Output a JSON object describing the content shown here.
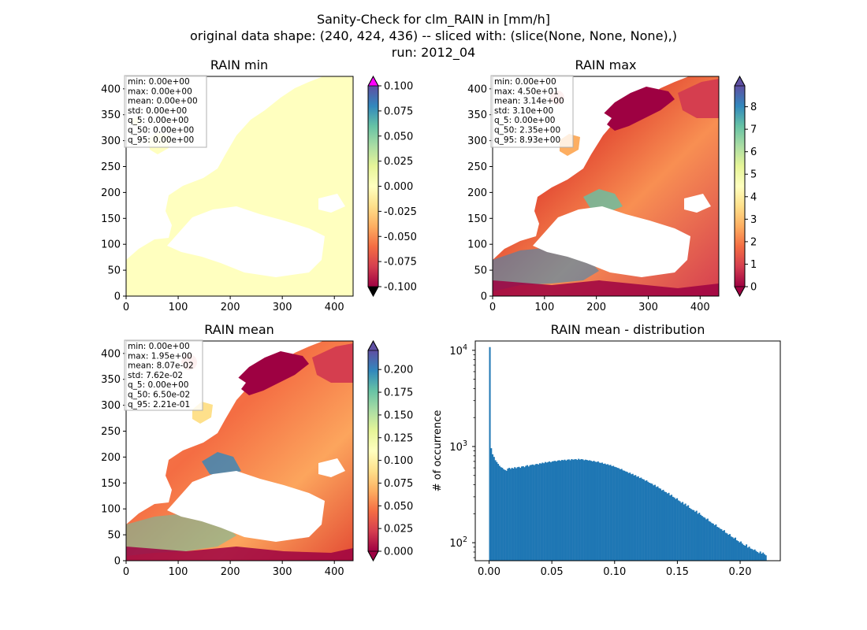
{
  "figure": {
    "suptitle_lines": [
      "Sanity-Check for clm_RAIN in [mm/h]",
      "original data shape: (240, 424, 436) -- sliced with: (slice(None, None, None),)",
      "run: 2012_04"
    ]
  },
  "chart_data": [
    {
      "type": "heatmap",
      "title": "RAIN min",
      "xticks": [
        0,
        100,
        200,
        300,
        400
      ],
      "yticks": [
        0,
        50,
        100,
        150,
        200,
        250,
        300,
        350,
        400
      ],
      "xlim": [
        0,
        436
      ],
      "ylim": [
        0,
        424
      ],
      "colormap": "Spectral",
      "colorbar": {
        "ticks": [
          "-0.100",
          "-0.075",
          "-0.050",
          "-0.025",
          "0.000",
          "0.025",
          "0.050",
          "0.075",
          "0.100"
        ],
        "range": [
          -0.1,
          0.1
        ],
        "extend": "both",
        "over_color": "#ff00ff",
        "under_color": "#000000"
      },
      "stats": [
        "min: 0.00e+00",
        "max: 0.00e+00",
        "mean: 0.00e+00",
        "std: 0.00e+00",
        "q_5: 0.00e+00",
        "q_50: 0.00e+00",
        "q_95: 0.00e+00"
      ]
    },
    {
      "type": "heatmap",
      "title": "RAIN max",
      "xticks": [
        0,
        100,
        200,
        300,
        400
      ],
      "yticks": [
        0,
        50,
        100,
        150,
        200,
        250,
        300,
        350,
        400
      ],
      "xlim": [
        0,
        436
      ],
      "ylim": [
        0,
        424
      ],
      "colormap": "Spectral",
      "colorbar": {
        "ticks": [
          "0",
          "1",
          "2",
          "3",
          "4",
          "5",
          "6",
          "7",
          "8"
        ],
        "range": [
          0,
          8.93
        ],
        "extend": "both"
      },
      "stats": [
        "min: 0.00e+00",
        "max: 4.50e+01",
        "mean: 3.14e+00",
        "std: 3.10e+00",
        "q_5: 0.00e+00",
        "q_50: 2.35e+00",
        "q_95: 8.93e+00"
      ]
    },
    {
      "type": "heatmap",
      "title": "RAIN mean",
      "xticks": [
        0,
        100,
        200,
        300,
        400
      ],
      "yticks": [
        0,
        50,
        100,
        150,
        200,
        250,
        300,
        350,
        400
      ],
      "xlim": [
        0,
        436
      ],
      "ylim": [
        0,
        424
      ],
      "colormap": "Spectral",
      "colorbar": {
        "ticks": [
          "0.000",
          "0.025",
          "0.050",
          "0.075",
          "0.100",
          "0.125",
          "0.150",
          "0.175",
          "0.200"
        ],
        "range": [
          0,
          0.221
        ],
        "extend": "both"
      },
      "stats": [
        "min: 0.00e+00",
        "max: 1.95e+00",
        "mean: 8.07e-02",
        "std: 7.62e-02",
        "q_5: 0.00e+00",
        "q_50: 6.50e-02",
        "q_95: 2.21e-01"
      ]
    },
    {
      "type": "bar",
      "title": "RAIN mean - distribution",
      "ylabel": "# of occurrence",
      "yscale": "log",
      "ylim": [
        65,
        12500
      ],
      "xlim": [
        -0.011,
        0.232
      ],
      "xticks": [
        "0.00",
        "0.05",
        "0.10",
        "0.15",
        "0.20"
      ],
      "color": "#1f77b4",
      "bins": {
        "start": 0.0,
        "width": 0.001105,
        "values": [
          10800,
          960,
          830,
          780,
          720,
          690,
          660,
          630,
          610,
          600,
          580,
          570,
          560,
          590,
          600,
          585,
          600,
          590,
          610,
          595,
          610,
          615,
          600,
          620,
          625,
          610,
          630,
          640,
          620,
          640,
          645,
          650,
          640,
          655,
          660,
          650,
          670,
          665,
          680,
          670,
          690,
          680,
          690,
          700,
          685,
          700,
          705,
          710,
          700,
          715,
          720,
          710,
          725,
          720,
          730,
          715,
          730,
          735,
          720,
          740,
          730,
          735,
          740,
          725,
          745,
          730,
          740,
          735,
          720,
          730,
          725,
          715,
          720,
          710,
          700,
          710,
          695,
          690,
          700,
          680,
          675,
          680,
          660,
          665,
          650,
          655,
          640,
          645,
          625,
          630,
          615,
          610,
          600,
          595,
          580,
          585,
          565,
          560,
          550,
          545,
          530,
          535,
          515,
          520,
          500,
          505,
          485,
          490,
          470,
          475,
          460,
          455,
          440,
          445,
          430,
          420,
          415,
          410,
          395,
          400,
          380,
          385,
          370,
          365,
          350,
          355,
          340,
          335,
          325,
          330,
          310,
          315,
          300,
          295,
          285,
          290,
          275,
          270,
          260,
          265,
          250,
          255,
          240,
          245,
          230,
          225,
          220,
          218,
          210,
          215,
          200,
          205,
          195,
          190,
          185,
          182,
          175,
          178,
          168,
          165,
          160,
          158,
          152,
          155,
          146,
          144,
          140,
          138,
          133,
          135,
          127,
          125,
          121,
          123,
          116,
          114,
          111,
          113,
          106,
          104,
          101,
          103,
          98,
          95,
          93,
          96,
          89,
          91,
          87,
          86,
          84,
          85,
          82,
          80,
          78,
          81,
          77,
          79,
          76,
          74
        ]
      }
    }
  ]
}
